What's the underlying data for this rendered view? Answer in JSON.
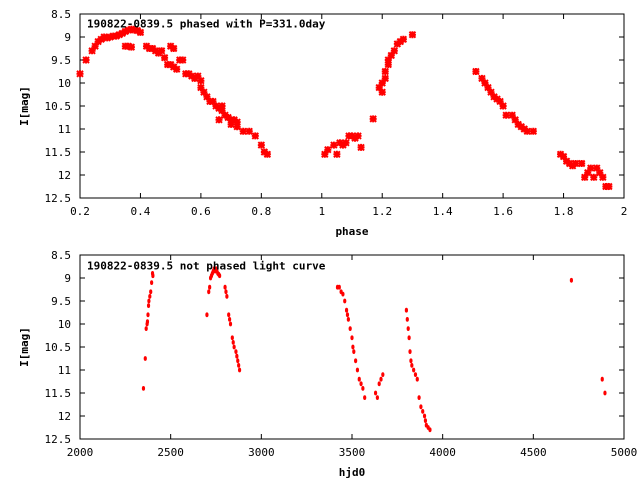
{
  "chart_data": [
    {
      "type": "scatter",
      "title": "190822-0839.5 phased with P=331.0day",
      "xlabel": "phase",
      "ylabel": "I[mag]",
      "xlim": [
        0.2,
        2.0
      ],
      "ylim": [
        12.5,
        8.5
      ],
      "y_inverted": true,
      "x_ticks": [
        0.2,
        0.4,
        0.6,
        0.8,
        1.0,
        1.2,
        1.4,
        1.6,
        1.8,
        2.0
      ],
      "x_tick_labels": [
        "0.2",
        "0.4",
        "0.6",
        "0.8",
        "1",
        "1.2",
        "1.4",
        "1.6",
        "1.8",
        "2"
      ],
      "y_ticks": [
        8.5,
        9.0,
        9.5,
        10.0,
        10.5,
        11.0,
        11.5,
        12.0,
        12.5
      ],
      "y_tick_labels": [
        "8.5",
        "9",
        "9.5",
        "10",
        "10.5",
        "11",
        "11.5",
        "12",
        "12.5"
      ],
      "marker": "cross",
      "marker_color": "#ff0000",
      "grid": false,
      "points": [
        [
          0.2,
          9.8
        ],
        [
          0.22,
          9.5
        ],
        [
          0.24,
          9.3
        ],
        [
          0.25,
          9.2
        ],
        [
          0.26,
          9.1
        ],
        [
          0.27,
          9.05
        ],
        [
          0.28,
          9.0
        ],
        [
          0.29,
          9.02
        ],
        [
          0.3,
          9.0
        ],
        [
          0.31,
          8.98
        ],
        [
          0.32,
          8.98
        ],
        [
          0.33,
          8.95
        ],
        [
          0.34,
          8.92
        ],
        [
          0.35,
          8.88
        ],
        [
          0.36,
          8.85
        ],
        [
          0.37,
          8.83
        ],
        [
          0.38,
          8.85
        ],
        [
          0.39,
          8.86
        ],
        [
          0.4,
          8.9
        ],
        [
          0.35,
          9.2
        ],
        [
          0.36,
          9.2
        ],
        [
          0.37,
          9.22
        ],
        [
          0.42,
          9.2
        ],
        [
          0.43,
          9.25
        ],
        [
          0.44,
          9.25
        ],
        [
          0.45,
          9.3
        ],
        [
          0.46,
          9.35
        ],
        [
          0.47,
          9.3
        ],
        [
          0.48,
          9.45
        ],
        [
          0.49,
          9.6
        ],
        [
          0.5,
          9.2
        ],
        [
          0.51,
          9.25
        ],
        [
          0.5,
          9.6
        ],
        [
          0.51,
          9.65
        ],
        [
          0.52,
          9.7
        ],
        [
          0.53,
          9.5
        ],
        [
          0.54,
          9.5
        ],
        [
          0.55,
          9.8
        ],
        [
          0.56,
          9.8
        ],
        [
          0.57,
          9.85
        ],
        [
          0.58,
          9.9
        ],
        [
          0.59,
          9.85
        ],
        [
          0.6,
          9.95
        ],
        [
          0.6,
          10.1
        ],
        [
          0.61,
          10.2
        ],
        [
          0.62,
          10.3
        ],
        [
          0.63,
          10.4
        ],
        [
          0.64,
          10.4
        ],
        [
          0.65,
          10.5
        ],
        [
          0.66,
          10.55
        ],
        [
          0.66,
          10.8
        ],
        [
          0.67,
          10.6
        ],
        [
          0.67,
          10.5
        ],
        [
          0.68,
          10.7
        ],
        [
          0.69,
          10.75
        ],
        [
          0.7,
          10.8
        ],
        [
          0.7,
          10.9
        ],
        [
          0.71,
          10.8
        ],
        [
          0.72,
          10.85
        ],
        [
          0.72,
          10.95
        ],
        [
          0.74,
          11.05
        ],
        [
          0.76,
          11.05
        ],
        [
          0.78,
          11.15
        ],
        [
          0.8,
          11.35
        ],
        [
          0.81,
          11.5
        ],
        [
          0.82,
          11.55
        ],
        [
          1.01,
          11.55
        ],
        [
          1.02,
          11.45
        ],
        [
          1.04,
          11.35
        ],
        [
          1.05,
          11.55
        ],
        [
          1.06,
          11.3
        ],
        [
          1.07,
          11.35
        ],
        [
          1.08,
          11.3
        ],
        [
          1.09,
          11.15
        ],
        [
          1.1,
          11.15
        ],
        [
          1.11,
          11.2
        ],
        [
          1.12,
          11.15
        ],
        [
          1.13,
          11.4
        ],
        [
          1.17,
          10.78
        ],
        [
          1.19,
          10.1
        ],
        [
          1.2,
          10.2
        ],
        [
          1.2,
          10.0
        ],
        [
          1.21,
          9.9
        ],
        [
          1.21,
          9.75
        ],
        [
          1.22,
          9.6
        ],
        [
          1.22,
          9.5
        ],
        [
          1.23,
          9.4
        ],
        [
          1.24,
          9.3
        ],
        [
          1.25,
          9.15
        ],
        [
          1.26,
          9.1
        ],
        [
          1.27,
          9.05
        ],
        [
          1.3,
          8.95
        ],
        [
          1.51,
          9.75
        ],
        [
          1.53,
          9.9
        ],
        [
          1.54,
          10.0
        ],
        [
          1.55,
          10.1
        ],
        [
          1.56,
          10.2
        ],
        [
          1.57,
          10.3
        ],
        [
          1.58,
          10.35
        ],
        [
          1.59,
          10.4
        ],
        [
          1.6,
          10.5
        ],
        [
          1.61,
          10.7
        ],
        [
          1.63,
          10.7
        ],
        [
          1.64,
          10.8
        ],
        [
          1.65,
          10.9
        ],
        [
          1.66,
          10.95
        ],
        [
          1.67,
          11.0
        ],
        [
          1.68,
          11.05
        ],
        [
          1.7,
          11.05
        ],
        [
          1.79,
          11.55
        ],
        [
          1.8,
          11.6
        ],
        [
          1.81,
          11.7
        ],
        [
          1.82,
          11.75
        ],
        [
          1.83,
          11.8
        ],
        [
          1.84,
          11.75
        ],
        [
          1.86,
          11.75
        ],
        [
          1.87,
          12.05
        ],
        [
          1.88,
          11.95
        ],
        [
          1.89,
          11.85
        ],
        [
          1.9,
          12.05
        ],
        [
          1.91,
          11.85
        ],
        [
          1.92,
          11.95
        ],
        [
          1.93,
          12.05
        ],
        [
          1.94,
          12.25
        ],
        [
          1.95,
          12.25
        ]
      ]
    },
    {
      "type": "scatter",
      "title": "190822-0839.5 not phased light curve",
      "xlabel": "hjd0",
      "ylabel": "I[mag]",
      "xlim": [
        2000,
        5000
      ],
      "ylim": [
        12.5,
        8.5
      ],
      "y_inverted": true,
      "x_ticks": [
        2000,
        2500,
        3000,
        3500,
        4000,
        4500,
        5000
      ],
      "x_tick_labels": [
        "2000",
        "2500",
        "3000",
        "3500",
        "4000",
        "4500",
        "5000"
      ],
      "y_ticks": [
        8.5,
        9.0,
        9.5,
        10.0,
        10.5,
        11.0,
        11.5,
        12.0,
        12.5
      ],
      "y_tick_labels": [
        "8.5",
        "9",
        "9.5",
        "10",
        "10.5",
        "11",
        "11.5",
        "12",
        "12.5"
      ],
      "marker": "dot",
      "marker_color": "#ff0000",
      "grid": false,
      "points": [
        [
          2350,
          11.4
        ],
        [
          2360,
          10.75
        ],
        [
          2365,
          10.1
        ],
        [
          2370,
          10.0
        ],
        [
          2372,
          9.95
        ],
        [
          2375,
          9.8
        ],
        [
          2378,
          9.6
        ],
        [
          2380,
          9.5
        ],
        [
          2385,
          9.4
        ],
        [
          2390,
          9.3
        ],
        [
          2395,
          9.1
        ],
        [
          2400,
          8.9
        ],
        [
          2402,
          8.95
        ],
        [
          2700,
          9.8
        ],
        [
          2710,
          9.3
        ],
        [
          2715,
          9.2
        ],
        [
          2720,
          9.0
        ],
        [
          2725,
          8.95
        ],
        [
          2730,
          8.9
        ],
        [
          2735,
          8.85
        ],
        [
          2740,
          8.8
        ],
        [
          2745,
          8.85
        ],
        [
          2750,
          8.8
        ],
        [
          2755,
          8.85
        ],
        [
          2760,
          8.9
        ],
        [
          2765,
          8.92
        ],
        [
          2770,
          8.95
        ],
        [
          2800,
          9.2
        ],
        [
          2805,
          9.3
        ],
        [
          2810,
          9.4
        ],
        [
          2820,
          9.8
        ],
        [
          2825,
          9.9
        ],
        [
          2830,
          10.0
        ],
        [
          2840,
          10.3
        ],
        [
          2845,
          10.4
        ],
        [
          2850,
          10.5
        ],
        [
          2860,
          10.6
        ],
        [
          2865,
          10.7
        ],
        [
          2870,
          10.8
        ],
        [
          2875,
          10.9
        ],
        [
          2880,
          11.0
        ],
        [
          3420,
          9.2
        ],
        [
          3430,
          9.2
        ],
        [
          3440,
          9.3
        ],
        [
          3450,
          9.35
        ],
        [
          3460,
          9.5
        ],
        [
          3470,
          9.7
        ],
        [
          3475,
          9.8
        ],
        [
          3480,
          9.9
        ],
        [
          3490,
          10.1
        ],
        [
          3500,
          10.3
        ],
        [
          3505,
          10.5
        ],
        [
          3510,
          10.6
        ],
        [
          3520,
          10.8
        ],
        [
          3530,
          11.0
        ],
        [
          3540,
          11.2
        ],
        [
          3550,
          11.3
        ],
        [
          3560,
          11.4
        ],
        [
          3570,
          11.6
        ],
        [
          3630,
          11.5
        ],
        [
          3640,
          11.6
        ],
        [
          3650,
          11.3
        ],
        [
          3660,
          11.2
        ],
        [
          3670,
          11.1
        ],
        [
          3800,
          9.7
        ],
        [
          3805,
          9.9
        ],
        [
          3810,
          10.1
        ],
        [
          3815,
          10.3
        ],
        [
          3820,
          10.6
        ],
        [
          3825,
          10.8
        ],
        [
          3830,
          10.9
        ],
        [
          3840,
          11.0
        ],
        [
          3850,
          11.1
        ],
        [
          3860,
          11.2
        ],
        [
          3870,
          11.6
        ],
        [
          3880,
          11.8
        ],
        [
          3890,
          11.9
        ],
        [
          3900,
          12.0
        ],
        [
          3905,
          12.1
        ],
        [
          3910,
          12.2
        ],
        [
          3920,
          12.25
        ],
        [
          3930,
          12.3
        ],
        [
          4710,
          9.05
        ],
        [
          4880,
          11.2
        ],
        [
          4895,
          11.5
        ]
      ]
    }
  ]
}
